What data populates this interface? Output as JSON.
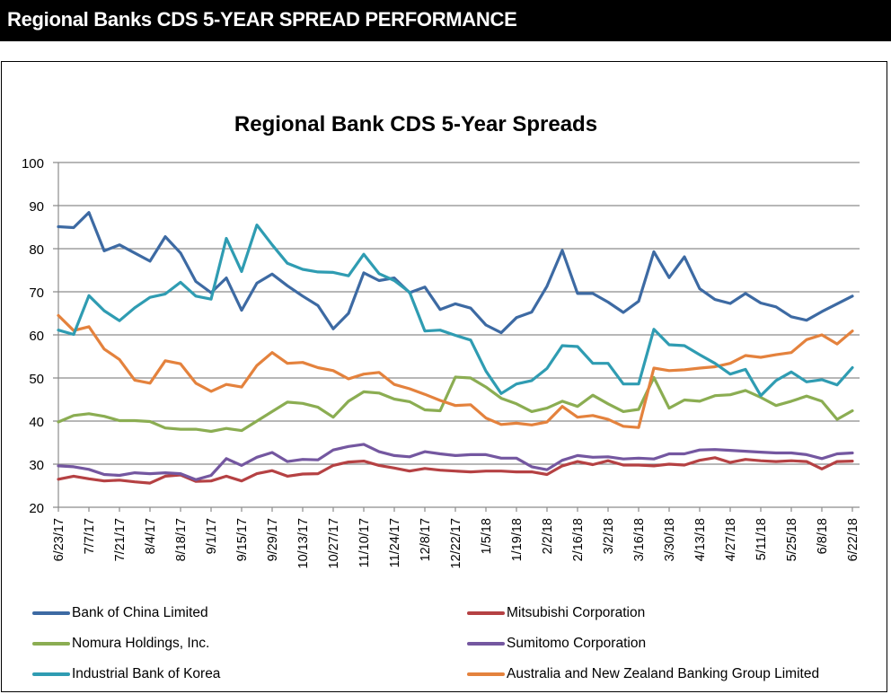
{
  "header": {
    "title": "Regional Banks CDS 5-YEAR SPREAD PERFORMANCE"
  },
  "chart_data": {
    "type": "line",
    "title": "Regional Bank CDS 5-Year Spreads",
    "xlabel": "",
    "ylabel": "",
    "ylim": [
      20,
      100
    ],
    "yticks": [
      20,
      30,
      40,
      50,
      60,
      70,
      80,
      90,
      100
    ],
    "grid": true,
    "legend_position": "bottom",
    "x": [
      "6/23/17",
      "6/30/17",
      "7/7/17",
      "7/14/17",
      "7/21/17",
      "7/28/17",
      "8/4/17",
      "8/11/17",
      "8/18/17",
      "8/25/17",
      "9/1/17",
      "9/8/17",
      "9/15/17",
      "9/22/17",
      "9/29/17",
      "10/6/17",
      "10/13/17",
      "10/20/17",
      "10/27/17",
      "11/3/17",
      "11/10/17",
      "11/17/17",
      "11/24/17",
      "12/1/17",
      "12/8/17",
      "12/15/17",
      "12/22/17",
      "12/29/17",
      "1/5/18",
      "1/12/18",
      "1/19/18",
      "1/26/18",
      "2/2/18",
      "2/9/18",
      "2/16/18",
      "2/23/18",
      "3/2/18",
      "3/9/18",
      "3/16/18",
      "3/23/18",
      "3/30/18",
      "4/6/18",
      "4/13/18",
      "4/20/18",
      "4/27/18",
      "5/4/18",
      "5/11/18",
      "5/18/18",
      "5/25/18",
      "6/1/18",
      "6/8/18",
      "6/15/18",
      "6/22/18"
    ],
    "xtick_labels": [
      "6/23/17",
      "7/7/17",
      "7/21/17",
      "8/4/17",
      "8/18/17",
      "9/1/17",
      "9/15/17",
      "9/29/17",
      "10/13/17",
      "10/27/17",
      "11/10/17",
      "11/24/17",
      "12/8/17",
      "12/22/17",
      "1/5/18",
      "1/19/18",
      "2/2/18",
      "2/16/18",
      "3/2/18",
      "3/16/18",
      "3/30/18",
      "4/13/18",
      "4/27/18",
      "5/11/18",
      "5/25/18",
      "6/8/18",
      "6/22/18"
    ],
    "series": [
      {
        "name": "Bank of China Limited",
        "color": "#3d6aa3",
        "values": [
          85.1,
          84.9,
          88.4,
          79.5,
          80.9,
          79.0,
          77.1,
          82.8,
          79.0,
          72.4,
          69.8,
          73.2,
          65.7,
          72.0,
          74.1,
          71.4,
          69.0,
          66.8,
          61.4,
          65.0,
          74.4,
          72.6,
          73.2,
          69.8,
          71.1,
          65.9,
          67.2,
          66.2,
          62.3,
          60.5,
          64.0,
          65.3,
          71.3,
          79.6,
          69.6,
          69.6,
          67.6,
          65.2,
          67.8,
          79.3,
          73.3,
          78.1,
          70.7,
          68.2,
          67.3,
          69.6,
          67.4,
          66.5,
          64.2,
          63.4,
          65.4,
          67.2,
          69.0
        ]
      },
      {
        "name": "Mitsubishi Corporation",
        "color": "#b54143",
        "values": [
          26.5,
          27.2,
          26.6,
          26.1,
          26.3,
          25.9,
          25.6,
          27.2,
          27.5,
          26.0,
          26.1,
          27.2,
          26.1,
          27.8,
          28.5,
          27.2,
          27.7,
          27.8,
          29.7,
          30.5,
          30.7,
          29.7,
          29.1,
          28.4,
          29.0,
          28.6,
          28.4,
          28.2,
          28.4,
          28.4,
          28.2,
          28.2,
          27.6,
          29.6,
          30.6,
          29.9,
          30.8,
          29.8,
          29.8,
          29.6,
          30.0,
          29.8,
          30.9,
          31.5,
          30.4,
          31.1,
          30.8,
          30.6,
          30.8,
          30.6,
          28.9,
          30.6,
          30.7
        ]
      },
      {
        "name": "Nomura Holdings, Inc.",
        "color": "#8bad52",
        "values": [
          39.8,
          41.3,
          41.7,
          41.1,
          40.1,
          40.1,
          39.9,
          38.4,
          38.1,
          38.1,
          37.6,
          38.3,
          37.8,
          40.0,
          42.2,
          44.4,
          44.1,
          43.2,
          40.9,
          44.6,
          46.8,
          46.5,
          45.1,
          44.5,
          42.6,
          42.4,
          50.2,
          50.0,
          47.9,
          45.3,
          44.0,
          42.2,
          43.0,
          44.6,
          43.4,
          46.0,
          44.0,
          42.2,
          42.7,
          50.1,
          43.0,
          44.9,
          44.6,
          45.9,
          46.1,
          47.1,
          45.5,
          43.6,
          44.6,
          45.8,
          44.6,
          40.4,
          42.4
        ]
      },
      {
        "name": "Sumitomo Corporation",
        "color": "#7457a0",
        "values": [
          29.6,
          29.4,
          28.8,
          27.6,
          27.4,
          28.0,
          27.8,
          28.0,
          27.8,
          26.4,
          27.4,
          31.3,
          29.7,
          31.6,
          32.7,
          30.6,
          31.1,
          31.0,
          33.3,
          34.1,
          34.6,
          32.9,
          32.0,
          31.7,
          32.9,
          32.4,
          32.0,
          32.2,
          32.2,
          31.4,
          31.4,
          29.4,
          28.7,
          30.9,
          32.0,
          31.6,
          31.7,
          31.2,
          31.4,
          31.2,
          32.4,
          32.4,
          33.3,
          33.4,
          33.2,
          33.0,
          32.8,
          32.6,
          32.6,
          32.2,
          31.3,
          32.4,
          32.6
        ]
      },
      {
        "name": "Industrial Bank of Korea",
        "color": "#2f9cb2",
        "values": [
          61.1,
          60.1,
          69.1,
          65.6,
          63.3,
          66.3,
          68.7,
          69.5,
          72.2,
          69.0,
          68.3,
          82.4,
          74.7,
          85.5,
          80.9,
          76.6,
          75.2,
          74.6,
          74.5,
          73.7,
          78.7,
          74.2,
          72.6,
          69.9,
          60.9,
          61.1,
          59.9,
          58.8,
          51.6,
          46.4,
          48.6,
          49.4,
          52.2,
          57.5,
          57.3,
          53.4,
          53.4,
          48.6,
          48.6,
          61.3,
          57.7,
          57.5,
          55.4,
          53.4,
          50.9,
          52.0,
          45.9,
          49.4,
          51.4,
          49.1,
          49.6,
          48.4,
          52.4
        ]
      },
      {
        "name": "Australia and New Zealand Banking Group Limited",
        "color": "#e4823d",
        "values": [
          64.5,
          61.0,
          61.9,
          56.7,
          54.3,
          49.5,
          48.8,
          54.0,
          53.3,
          48.8,
          46.9,
          48.5,
          47.9,
          52.9,
          55.9,
          53.4,
          53.6,
          52.4,
          51.7,
          49.8,
          50.9,
          51.3,
          48.5,
          47.5,
          46.2,
          44.8,
          43.6,
          43.8,
          40.7,
          39.2,
          39.5,
          39.1,
          39.8,
          43.4,
          40.9,
          41.3,
          40.4,
          38.8,
          38.5,
          52.3,
          51.7,
          51.9,
          52.3,
          52.6,
          53.4,
          55.2,
          54.8,
          55.4,
          55.9,
          58.9,
          60.0,
          57.9,
          60.9
        ]
      }
    ]
  },
  "legend": {
    "items": [
      {
        "label": "Bank of China Limited",
        "color": "#3d6aa3"
      },
      {
        "label": "Mitsubishi Corporation",
        "color": "#b54143"
      },
      {
        "label": "Nomura Holdings, Inc.",
        "color": "#8bad52"
      },
      {
        "label": "Sumitomo Corporation",
        "color": "#7457a0"
      },
      {
        "label": "Industrial Bank of Korea",
        "color": "#2f9cb2"
      },
      {
        "label": "Australia and New Zealand Banking Group Limited",
        "color": "#e4823d"
      }
    ]
  }
}
